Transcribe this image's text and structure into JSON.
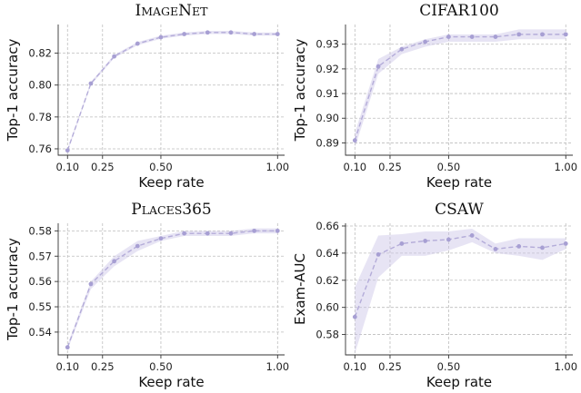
{
  "chart_data": [
    {
      "type": "line",
      "title": "IMAGENET",
      "title_parts": [
        [
          "I",
          "big"
        ],
        [
          "MAGE",
          "small"
        ],
        [
          "N",
          "big"
        ],
        [
          "ET",
          "small"
        ]
      ],
      "xlabel": "Keep rate",
      "ylabel": "Top-1 accuracy",
      "xlim": [
        0.06,
        1.03
      ],
      "ylim": [
        0.756,
        0.838
      ],
      "xticks": [
        "0.10",
        "0.25",
        "0.50",
        "1.00"
      ],
      "yticks": [
        "0.76",
        "0.78",
        "0.80",
        "0.82"
      ],
      "grid": true,
      "series": [
        {
          "x": [
            0.1,
            0.2,
            0.3,
            0.4,
            0.5,
            0.6,
            0.7,
            0.8,
            0.9,
            1.0
          ],
          "y": [
            0.759,
            0.801,
            0.818,
            0.826,
            0.83,
            0.832,
            0.833,
            0.833,
            0.832,
            0.832
          ],
          "lower": [
            0.758,
            0.8,
            0.817,
            0.825,
            0.829,
            0.831,
            0.832,
            0.832,
            0.831,
            0.831
          ],
          "upper": [
            0.76,
            0.802,
            0.819,
            0.827,
            0.831,
            0.833,
            0.834,
            0.834,
            0.833,
            0.833
          ]
        }
      ]
    },
    {
      "type": "line",
      "title": "CIFAR100",
      "title_parts": [
        [
          "CIFAR100",
          "big"
        ]
      ],
      "xlabel": "Keep rate",
      "ylabel": "Top-1 accuracy",
      "xlim": [
        0.06,
        1.03
      ],
      "ylim": [
        0.885,
        0.938
      ],
      "xticks": [
        "0.10",
        "0.25",
        "0.50",
        "1.00"
      ],
      "yticks": [
        "0.89",
        "0.90",
        "0.91",
        "0.92",
        "0.93"
      ],
      "grid": true,
      "series": [
        {
          "x": [
            0.1,
            0.2,
            0.3,
            0.4,
            0.5,
            0.6,
            0.7,
            0.8,
            0.9,
            1.0
          ],
          "y": [
            0.891,
            0.921,
            0.928,
            0.931,
            0.933,
            0.933,
            0.933,
            0.934,
            0.934,
            0.934
          ],
          "lower": [
            0.888,
            0.918,
            0.926,
            0.929,
            0.931,
            0.931,
            0.931,
            0.932,
            0.932,
            0.932
          ],
          "upper": [
            0.894,
            0.924,
            0.929,
            0.932,
            0.934,
            0.934,
            0.934,
            0.936,
            0.936,
            0.936
          ]
        }
      ]
    },
    {
      "type": "line",
      "title": "PLACES365",
      "title_parts": [
        [
          "P",
          "big"
        ],
        [
          "LACES",
          "small"
        ],
        [
          "365",
          "big"
        ]
      ],
      "xlabel": "Keep rate",
      "ylabel": "Top-1 accuracy",
      "xlim": [
        0.06,
        1.03
      ],
      "ylim": [
        0.531,
        0.583
      ],
      "xticks": [
        "0.10",
        "0.25",
        "0.50",
        "1.00"
      ],
      "yticks": [
        "0.54",
        "0.55",
        "0.56",
        "0.57",
        "0.58"
      ],
      "grid": true,
      "series": [
        {
          "x": [
            0.1,
            0.2,
            0.3,
            0.4,
            0.5,
            0.6,
            0.7,
            0.8,
            0.9,
            1.0
          ],
          "y": [
            0.534,
            0.559,
            0.568,
            0.574,
            0.577,
            0.579,
            0.579,
            0.579,
            0.58,
            0.58
          ],
          "lower": [
            0.533,
            0.557,
            0.566,
            0.572,
            0.576,
            0.578,
            0.578,
            0.578,
            0.579,
            0.579
          ],
          "upper": [
            0.535,
            0.56,
            0.57,
            0.576,
            0.578,
            0.58,
            0.58,
            0.58,
            0.581,
            0.581
          ]
        }
      ]
    },
    {
      "type": "line",
      "title": "CSAW",
      "title_parts": [
        [
          "CSAW",
          "big"
        ]
      ],
      "xlabel": "Keep rate",
      "ylabel": "Exam-AUC",
      "xlim": [
        0.06,
        1.03
      ],
      "ylim": [
        0.565,
        0.662
      ],
      "xticks": [
        "0.10",
        "0.25",
        "0.50",
        "1.00"
      ],
      "yticks": [
        "0.58",
        "0.60",
        "0.62",
        "0.64",
        "0.66"
      ],
      "grid": true,
      "series": [
        {
          "x": [
            0.1,
            0.2,
            0.3,
            0.4,
            0.5,
            0.6,
            0.7,
            0.8,
            0.9,
            1.0
          ],
          "y": [
            0.593,
            0.639,
            0.647,
            0.649,
            0.65,
            0.653,
            0.643,
            0.645,
            0.644,
            0.647
          ],
          "lower": [
            0.566,
            0.622,
            0.638,
            0.638,
            0.642,
            0.648,
            0.64,
            0.638,
            0.635,
            0.643
          ],
          "upper": [
            0.615,
            0.653,
            0.654,
            0.656,
            0.656,
            0.658,
            0.647,
            0.651,
            0.651,
            0.651
          ]
        }
      ]
    }
  ]
}
